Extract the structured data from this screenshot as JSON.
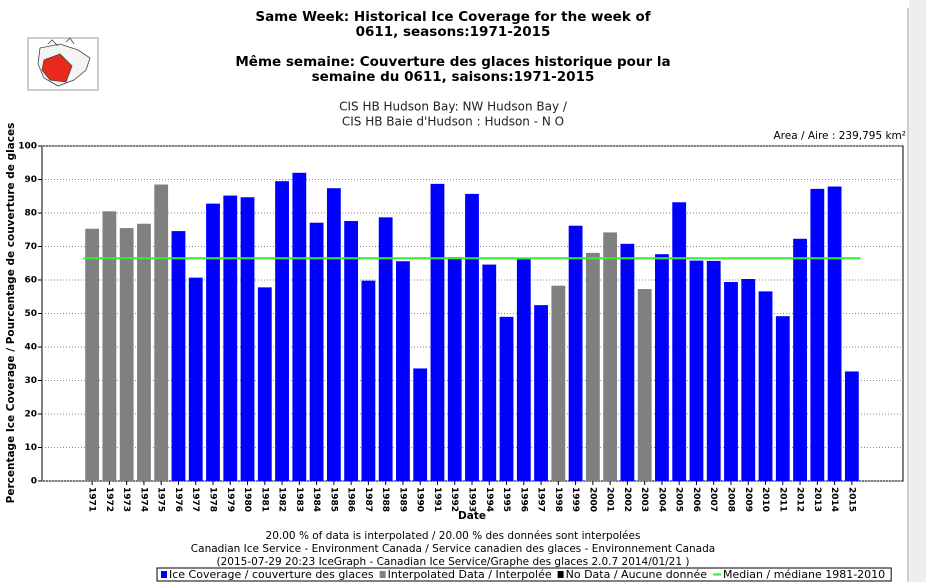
{
  "chart_data": {
    "type": "bar",
    "title": [
      "Same Week: Historical Ice Coverage for the week of",
      "0611, seasons:1971-2015"
    ],
    "title_fr": [
      "Même semaine: Couverture des glaces historique pour la",
      "semaine du 0611, saisons:1971-2015"
    ],
    "subtitle": [
      "CIS HB Hudson Bay: NW Hudson Bay /",
      "CIS HB Baie d'Hudson : Hudson - N O"
    ],
    "area_label": "Area / Aire : 239,795 km²",
    "x_label": "Date",
    "y_label": "Percentage Ice Coverage / Pourcentage de couverture de glaces",
    "categories": [
      "1971",
      "1972",
      "1973",
      "1974",
      "1975",
      "1976",
      "1977",
      "1978",
      "1979",
      "1980",
      "1981",
      "1982",
      "1983",
      "1984",
      "1985",
      "1986",
      "1987",
      "1988",
      "1989",
      "1990",
      "1991",
      "1992",
      "1993",
      "1994",
      "1995",
      "1996",
      "1997",
      "1998",
      "1999",
      "2000",
      "2001",
      "2002",
      "2003",
      "2004",
      "2005",
      "2006",
      "2007",
      "2008",
      "2009",
      "2010",
      "2011",
      "2012",
      "2013",
      "2014",
      "2015"
    ],
    "values": [
      75.3,
      80.5,
      75.5,
      76.8,
      88.5,
      74.6,
      60.7,
      82.8,
      85.2,
      84.7,
      57.8,
      89.5,
      92.0,
      77.1,
      87.4,
      77.6,
      59.8,
      78.7,
      65.6,
      33.6,
      88.7,
      66.8,
      85.7,
      64.6,
      49.0,
      66.2,
      52.5,
      58.3,
      76.2,
      68.1,
      74.2,
      70.8,
      57.3,
      67.7,
      83.2,
      65.8,
      65.7,
      59.4,
      60.3,
      56.6,
      49.2,
      72.3,
      87.2,
      87.9,
      32.7
    ],
    "bar_colors": [
      "#808080",
      "#808080",
      "#808080",
      "#808080",
      "#808080",
      "#0000ff",
      "#0000ff",
      "#0000ff",
      "#0000ff",
      "#0000ff",
      "#0000ff",
      "#0000ff",
      "#0000ff",
      "#0000ff",
      "#0000ff",
      "#0000ff",
      "#0000ff",
      "#0000ff",
      "#0000ff",
      "#0000ff",
      "#0000ff",
      "#0000ff",
      "#0000ff",
      "#0000ff",
      "#0000ff",
      "#0000ff",
      "#0000ff",
      "#808080",
      "#0000ff",
      "#808080",
      "#808080",
      "#0000ff",
      "#808080",
      "#0000ff",
      "#0000ff",
      "#0000ff",
      "#0000ff",
      "#0000ff",
      "#0000ff",
      "#0000ff",
      "#0000ff",
      "#0000ff",
      "#0000ff",
      "#0000ff",
      "#0000ff"
    ],
    "legend": [
      {
        "name": "Ice Coverage / couverture des glaces",
        "color": "#0000ff"
      },
      {
        "name": "Interpolated Data / Interpolée",
        "color": "#808080"
      },
      {
        "name": "No Data / Aucune donnée",
        "color": "#000000"
      }
    ],
    "median": {
      "name": "Median / médiane 1981-2010",
      "color": "#33ee33",
      "value": 66.5
    },
    "ylim": [
      0,
      100
    ],
    "yticks": [
      0,
      10,
      20,
      30,
      40,
      50,
      60,
      70,
      80,
      90,
      100
    ],
    "grid": true,
    "footer": [
      "20.00 % of data is interpolated / 20.00 % des données sont interpolées",
      "Canadian Ice Service - Environment Canada / Service canadien des glaces - Environnement Canada",
      "(2015-07-29 20:23 IceGraph - Canadian Ice Service/Graphe des glaces 2.0.7 2014/01/21 )"
    ]
  }
}
